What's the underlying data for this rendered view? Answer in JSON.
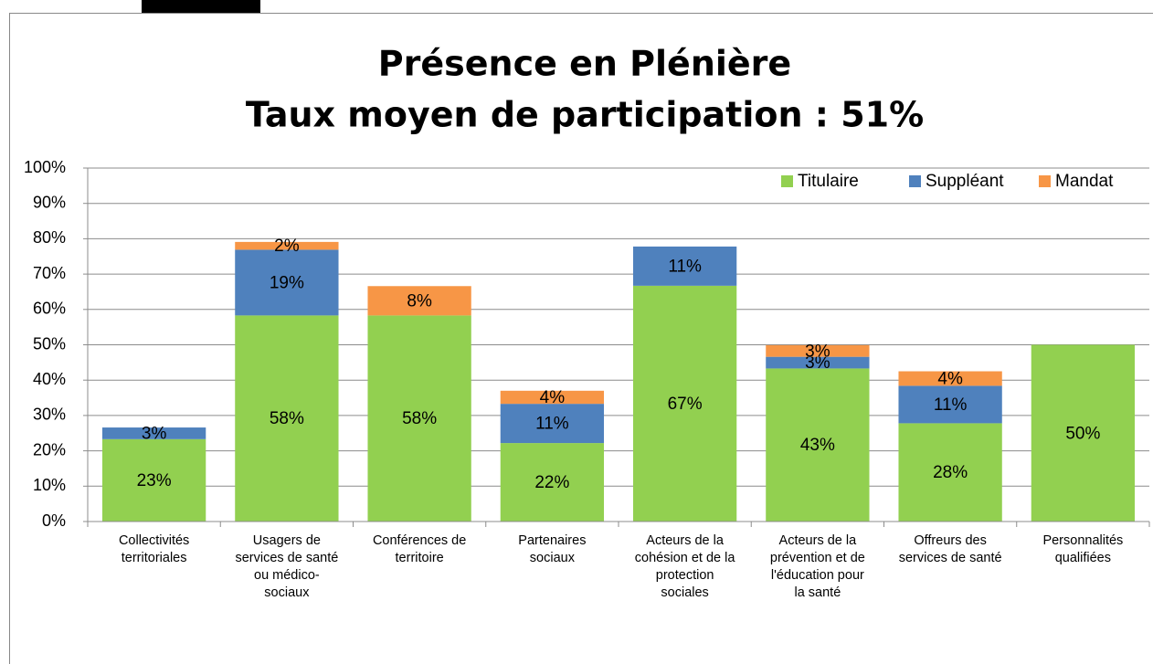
{
  "chart_data": {
    "type": "stacked_bar",
    "title": "Présence en Plénière",
    "subtitle": "Taux moyen de participation :  51%",
    "categories": [
      [
        "Collectivités",
        "territoriales"
      ],
      [
        "Usagers de",
        "services de santé",
        "ou médico-",
        "sociaux"
      ],
      [
        "Conférences de",
        "territoire"
      ],
      [
        "Partenaires",
        "sociaux"
      ],
      [
        "Acteurs de la",
        "cohésion et de la",
        "protection",
        "sociales"
      ],
      [
        "Acteurs de la",
        "prévention et de",
        "l'éducation pour",
        "la santé"
      ],
      [
        "Offreurs des",
        "services de santé"
      ],
      [
        "Personnalités",
        "qualifiées"
      ]
    ],
    "series": [
      {
        "name": "Titulaire",
        "color": "#92d050",
        "values": [
          23.3,
          58.3,
          58.3,
          22.2,
          66.7,
          43.3,
          27.8,
          50
        ],
        "value_labels": [
          "23%",
          "58%",
          "58%",
          "22%",
          "67%",
          "43%",
          "28%",
          "50%"
        ]
      },
      {
        "name": "Suppléant",
        "color": "#4f81bd",
        "values": [
          3.3,
          18.6,
          null,
          11.1,
          11.1,
          3.3,
          10.6,
          null
        ],
        "value_labels": [
          "3%",
          "19%",
          null,
          "11%",
          "11%",
          "3%",
          "11%",
          null
        ]
      },
      {
        "name": "Mandat",
        "color": "#f79646",
        "values": [
          null,
          2.2,
          8.3,
          3.7,
          null,
          3.3,
          4.1,
          null
        ],
        "value_labels": [
          null,
          "2%",
          "8%",
          "4%",
          null,
          "3%",
          "4%",
          null
        ]
      }
    ],
    "ylim": [
      0,
      100
    ],
    "yticks": [
      {
        "value": 0,
        "label": "0%"
      },
      {
        "value": 10,
        "label": "10%"
      },
      {
        "value": 20,
        "label": "20%"
      },
      {
        "value": 30,
        "label": "30%"
      },
      {
        "value": 40,
        "label": "40%"
      },
      {
        "value": 50,
        "label": "50%"
      },
      {
        "value": 60,
        "label": "60%"
      },
      {
        "value": 70,
        "label": "70%"
      },
      {
        "value": 80,
        "label": "80%"
      },
      {
        "value": 90,
        "label": "90%"
      },
      {
        "value": 100,
        "label": "100%"
      }
    ],
    "grid": true,
    "legend": "top-right"
  }
}
